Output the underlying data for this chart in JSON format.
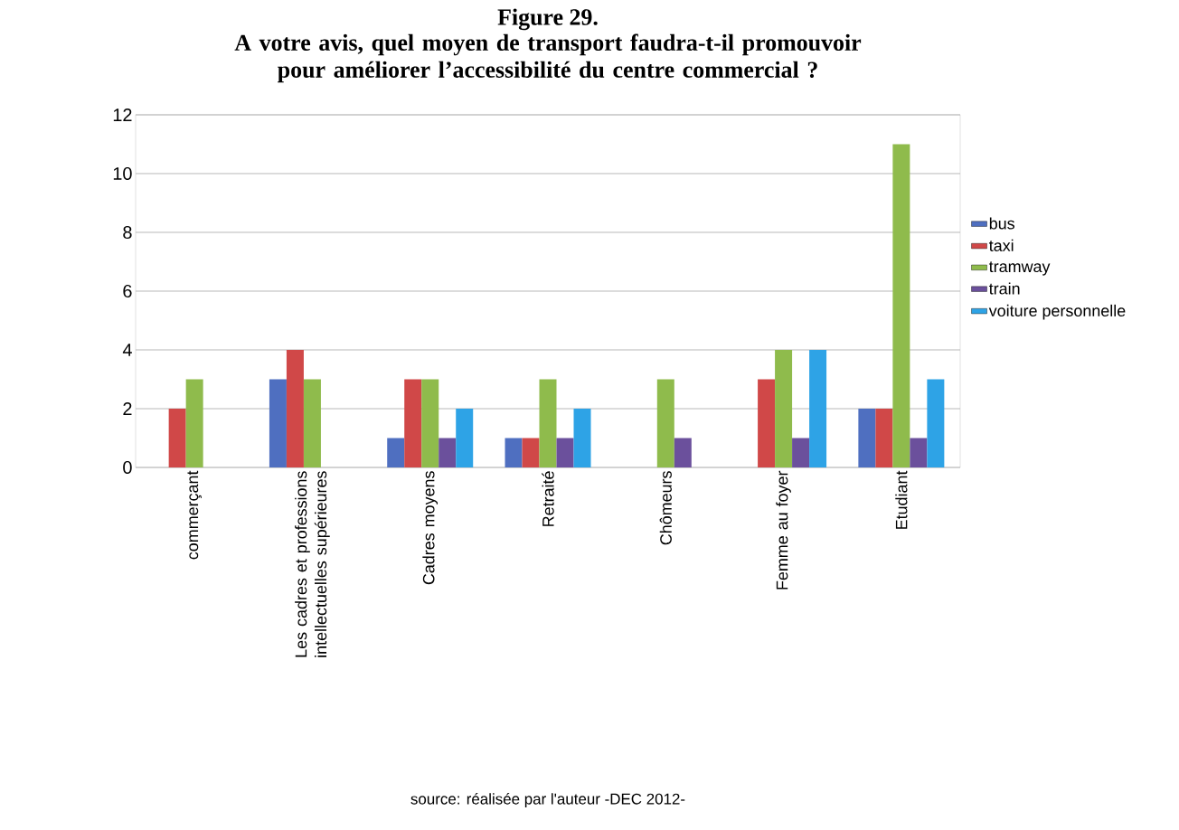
{
  "chart_data": {
    "type": "bar",
    "title": "Figure 29.",
    "subtitle": "A votre avis, quel moyen de transport faudra-t-il promouvoir pour améliorer l’accessibilité du centre commercial ?",
    "categories": [
      "commerçant",
      "Les cadres et professions intellectuelles supérieures",
      "Cadres moyens",
      "Retraité",
      "Chômeurs",
      "Femme au foyer",
      "Etudiant"
    ],
    "series": [
      {
        "name": "bus",
        "color": "#4f6fc0",
        "values": [
          0,
          3,
          1,
          1,
          0,
          0,
          2
        ]
      },
      {
        "name": "taxi",
        "color": "#d04848",
        "values": [
          2,
          4,
          3,
          1,
          0,
          3,
          2
        ]
      },
      {
        "name": "tramway",
        "color": "#8fbb4c",
        "values": [
          3,
          3,
          3,
          3,
          3,
          4,
          11
        ]
      },
      {
        "name": "train",
        "color": "#6b509c",
        "values": [
          0,
          0,
          1,
          1,
          1,
          1,
          1
        ]
      },
      {
        "name": "voiture personnelle",
        "color": "#2ea3e6",
        "values": [
          0,
          0,
          2,
          2,
          0,
          4,
          3
        ]
      }
    ],
    "ylim": [
      0,
      12
    ],
    "yticks": [
      0,
      2,
      4,
      6,
      8,
      10,
      12
    ],
    "grid": "y",
    "legend": "right",
    "annotations": [
      "source: réalisée par l'auteur -DEC 2012-"
    ]
  }
}
